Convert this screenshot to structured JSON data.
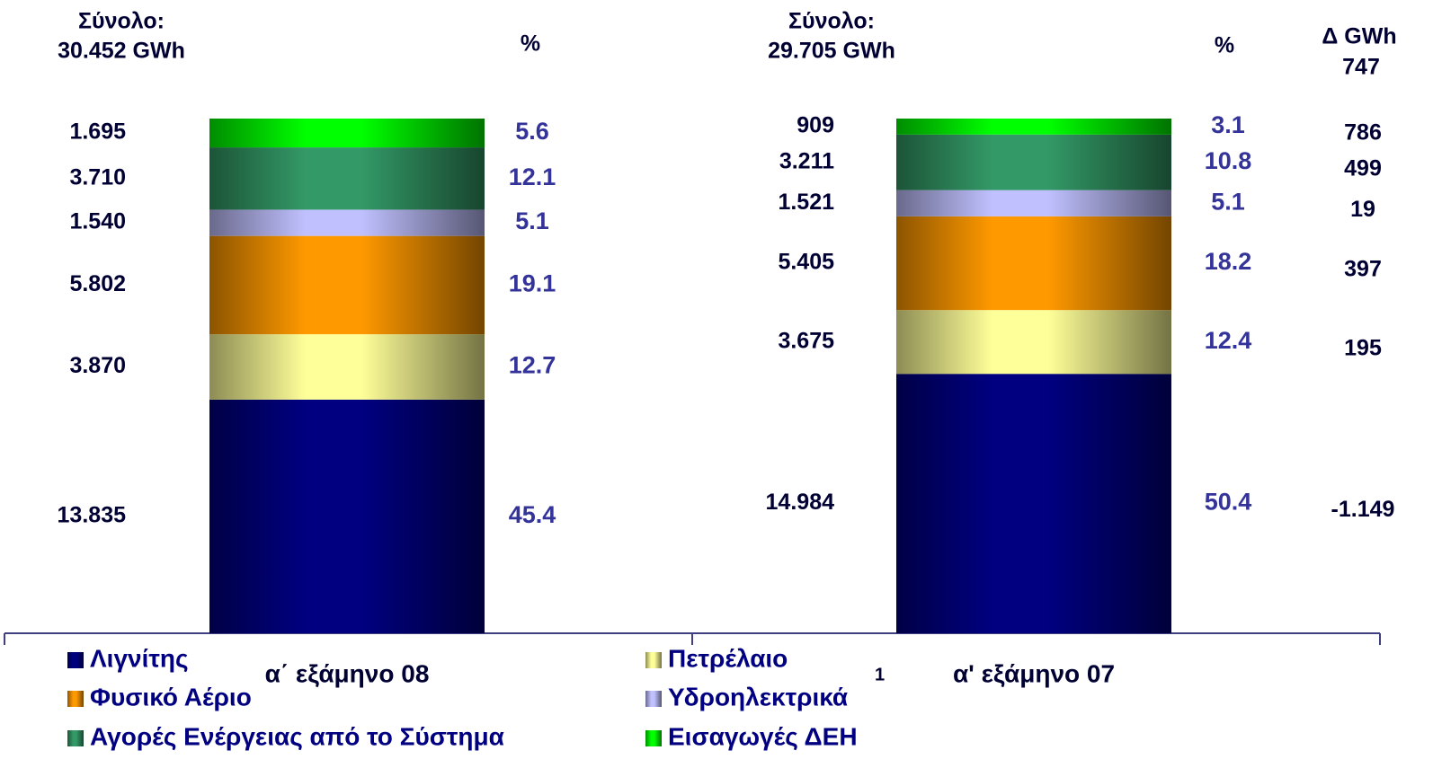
{
  "chart_data": {
    "type": "stacked_bar",
    "categories": [
      "α΄ εξάμηνο 08",
      "α' εξάμηνο 07"
    ],
    "totals": [
      [
        "Σύνολο:",
        "30.452 GWh"
      ],
      [
        "Σύνολο:",
        "29.705 GWh"
      ]
    ],
    "percent_header": "%",
    "delta_header": "Δ GWh",
    "delta_total": 747,
    "footnote_mark": "1",
    "ylim": [
      0,
      100
    ],
    "series": [
      {
        "name": "Λιγνίτης",
        "color": "#000080",
        "values": [
          45.4,
          50.4
        ],
        "gwh": [
          {
            "value": 13835,
            "label": "13.835"
          },
          {
            "value": 14984,
            "label": "14.984"
          }
        ],
        "delta": {
          "value": -1149,
          "label": "-1.149"
        }
      },
      {
        "name": "Πετρέλαιο",
        "color": "#ffff99",
        "values": [
          12.7,
          12.4
        ],
        "gwh": [
          {
            "value": 3870,
            "label": "3.870"
          },
          {
            "value": 3675,
            "label": "3.675"
          }
        ],
        "delta": 195
      },
      {
        "name": "Φυσικό Αέριο",
        "color": "#ff9900",
        "values": [
          19.1,
          18.2
        ],
        "gwh": [
          {
            "value": 5802,
            "label": "5.802"
          },
          {
            "value": 5405,
            "label": "5.405"
          }
        ],
        "delta": 397
      },
      {
        "name": "Υδροηλεκτρικά",
        "color": "#c0c0ff",
        "values": [
          5.1,
          5.1
        ],
        "gwh": [
          {
            "value": 1540,
            "label": "1.540"
          },
          {
            "value": 1521,
            "label": "1.521"
          }
        ],
        "delta": 19
      },
      {
        "name": "Αγορές Ενέργειας από το Σύστημα",
        "color": "#339966",
        "values": [
          12.1,
          10.8
        ],
        "gwh": [
          {
            "value": 3710,
            "label": "3.710"
          },
          {
            "value": 3211,
            "label": "3.211"
          }
        ],
        "delta": 499
      },
      {
        "name": "Εισαγωγές ΔΕΗ",
        "color": "#00ff00",
        "values": [
          5.6,
          3.1
        ],
        "gwh": [
          {
            "value": 1695,
            "label": "1.695"
          },
          909
        ],
        "delta": 786
      }
    ]
  }
}
